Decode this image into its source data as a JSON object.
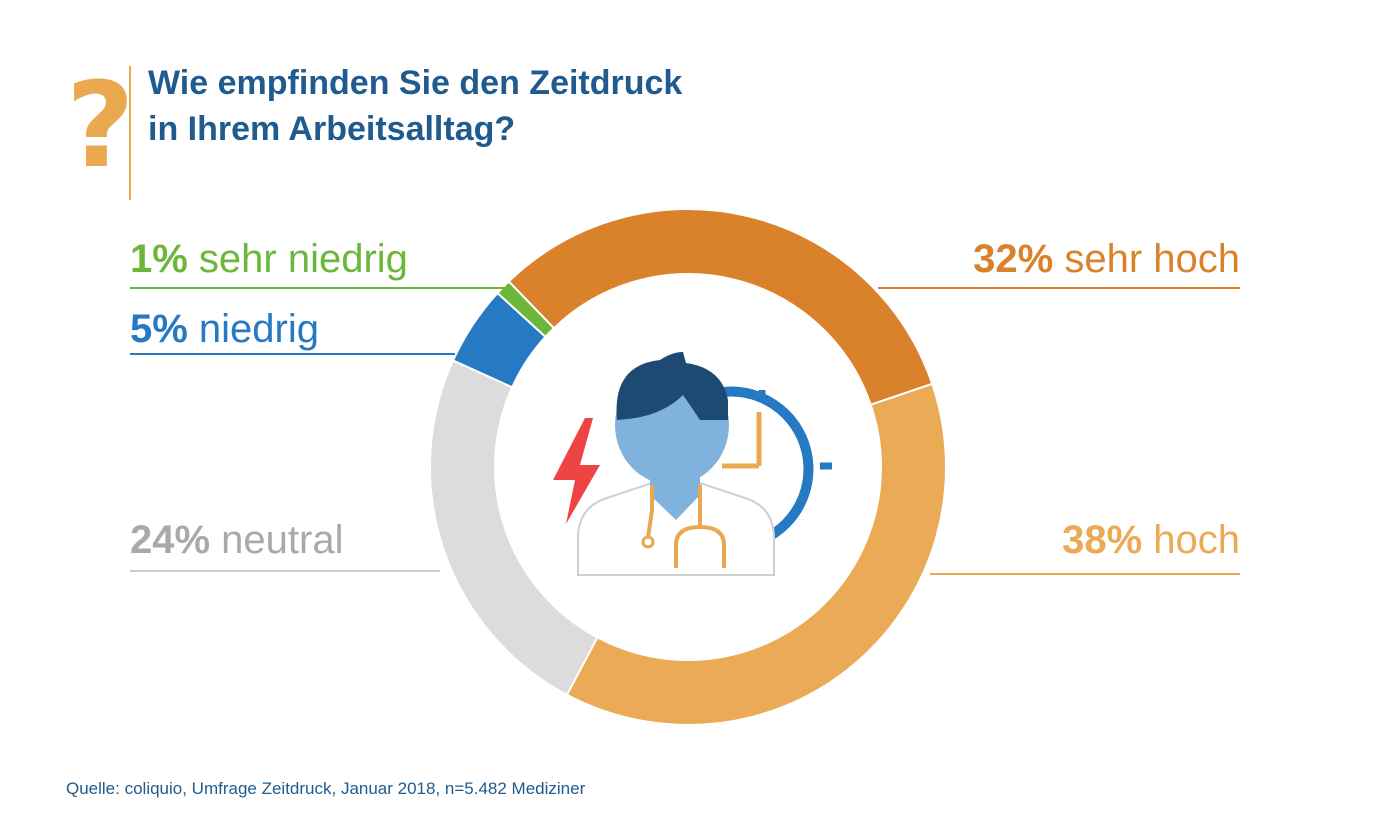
{
  "header": {
    "question_mark": "?",
    "title_line1": "Wie empfinden Sie den Zeitdruck",
    "title_line2": "in Ihrem Arbeitsalltag?"
  },
  "colors": {
    "title": "#1f5b8e",
    "accent": "#eaa950",
    "very_high": "#da822b",
    "high": "#ebaa55",
    "neutral": "#dcdcdc",
    "neutral_label": "#a9a9a9",
    "low": "#2679c3",
    "very_low": "#6cb63a",
    "illustration_hair": "#1d4a72",
    "illustration_skin": "#7fb2dc",
    "illustration_clock": "#2679c3",
    "illustration_bolt": "#ee4444"
  },
  "icons": [
    "question-mark-icon",
    "doctor-icon",
    "clock-icon",
    "lightning-bolt-icon",
    "stethoscope-icon"
  ],
  "chart_data": {
    "type": "pie",
    "subtype": "donut",
    "unit": "%",
    "categories": [
      "sehr hoch",
      "hoch",
      "neutral",
      "niedrig",
      "sehr niedrig"
    ],
    "values": [
      32,
      38,
      24,
      5,
      1
    ],
    "labels": [
      "32%",
      "38%",
      "24%",
      "5%",
      "1%"
    ]
  },
  "source": "Quelle: coliquio, Umfrage Zeitdruck, Januar 2018, n=5.482 Mediziner"
}
